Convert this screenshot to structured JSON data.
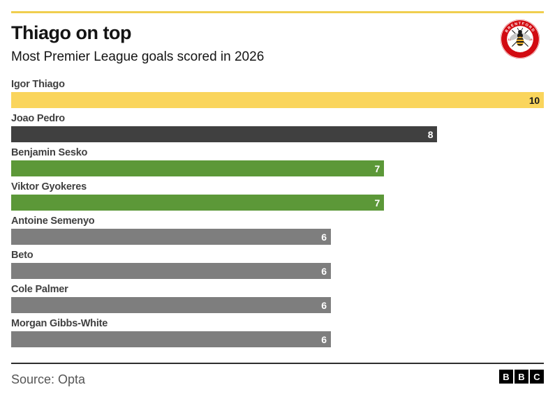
{
  "header": {
    "title": "Thiago on top",
    "subtitle": "Most Premier League goals scored in 2026"
  },
  "brand": {
    "crest_top_text": "BRENTFORD",
    "crest_bottom_text": "FOOTBALL CLUB",
    "crest_left_text": "18",
    "crest_right_text": "89",
    "crest_red": "#D20A11"
  },
  "chart_data": {
    "type": "bar",
    "orientation": "horizontal",
    "title": "Thiago on top",
    "subtitle": "Most Premier League goals scored in 2026",
    "categories": [
      "Igor Thiago",
      "Joao Pedro",
      "Benjamin Sesko",
      "Viktor Gyokeres",
      "Antoine Semenyo",
      "Beto",
      "Cole Palmer",
      "Morgan Gibbs-White"
    ],
    "values": [
      10,
      8,
      7,
      7,
      6,
      6,
      6,
      6
    ],
    "bar_colors": [
      "#FAD55C",
      "#404040",
      "#5C9838",
      "#5C9838",
      "#7E7E7E",
      "#7E7E7E",
      "#7E7E7E",
      "#7E7E7E"
    ],
    "value_label_colors": [
      "#1A1A1A",
      "#FFFFFF",
      "#FFFFFF",
      "#FFFFFF",
      "#FFFFFF",
      "#FFFFFF",
      "#FFFFFF",
      "#FFFFFF"
    ],
    "xlim": [
      0,
      10
    ],
    "grid": false,
    "legend": false,
    "value_label_position": "inside-end",
    "source": "Source: Opta"
  },
  "footer": {
    "source_label": "Source: Opta",
    "bbc_letters": [
      "B",
      "B",
      "C"
    ]
  },
  "theme": {
    "background": "#FFFFFF",
    "top_rule_color": "#F0CE4E",
    "footer_rule_color": "#2E2E2E",
    "category_label_color": "#404040",
    "heading_color": "#141414",
    "source_color": "#555555"
  }
}
